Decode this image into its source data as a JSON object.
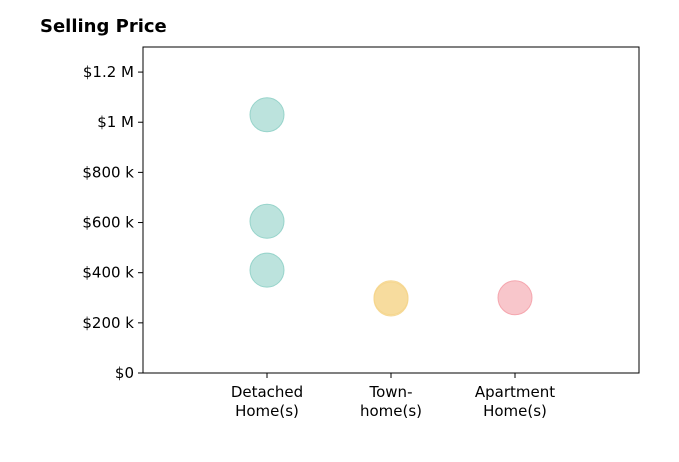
{
  "chart_data": {
    "type": "scatter",
    "title": "Selling Price",
    "xlabel": "",
    "ylabel": "",
    "categories": [
      [
        "Detached",
        "Home(s)"
      ],
      [
        "Town-",
        "home(s)"
      ],
      [
        "Apartment",
        "Home(s)"
      ]
    ],
    "ylim": [
      0,
      1300000
    ],
    "yticks": [
      0,
      200000,
      400000,
      600000,
      800000,
      1000000,
      1200000
    ],
    "ytick_labels": [
      "$0",
      "$200 k",
      "$400 k",
      "$600 k",
      "$800 k",
      "$1 M",
      "$1.2 M"
    ],
    "grid": false,
    "points": [
      {
        "category": 0,
        "y": 1030000,
        "color": "#8fd0c6"
      },
      {
        "category": 0,
        "y": 605000,
        "color": "#8fd0c6"
      },
      {
        "category": 0,
        "y": 410000,
        "color": "#8fd0c6"
      },
      {
        "category": 1,
        "y": 300000,
        "color": "#f5d58c"
      },
      {
        "category": 1,
        "y": 295000,
        "color": "#f5d58c"
      },
      {
        "category": 2,
        "y": 300000,
        "color": "#f4a0a8"
      }
    ]
  }
}
